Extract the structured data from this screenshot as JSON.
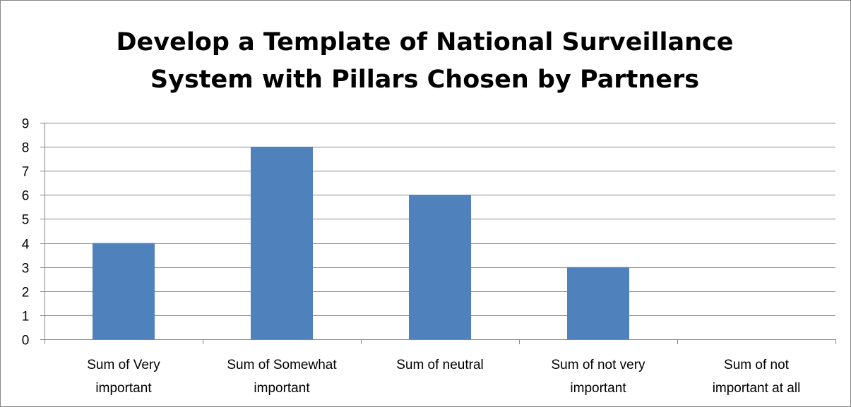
{
  "chart_data": {
    "type": "bar",
    "title_lines": [
      "Develop a Template of National Surveillance",
      "System with Pillars Chosen by Partners"
    ],
    "categories": [
      [
        "Sum of Very",
        "important"
      ],
      [
        "Sum of Somewhat",
        "important"
      ],
      [
        "Sum of neutral"
      ],
      [
        "Sum of not very",
        "important"
      ],
      [
        "Sum of not",
        "important at all"
      ]
    ],
    "values": [
      4,
      8,
      6,
      3,
      0
    ],
    "ylim": [
      0,
      9
    ],
    "yticks": [
      "0",
      "1",
      "2",
      "3",
      "4",
      "5",
      "6",
      "7",
      "8",
      "9"
    ],
    "grid": true,
    "legend": "none",
    "bar_color": "#4f81bd",
    "grid_color": "#868686"
  }
}
